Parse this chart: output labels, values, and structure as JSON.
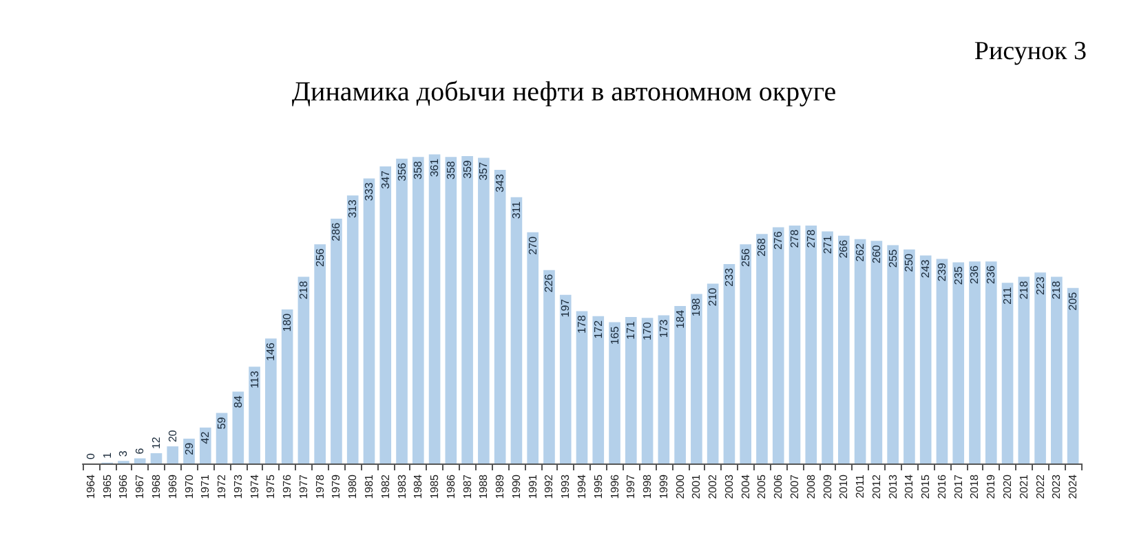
{
  "chart_data": {
    "type": "bar",
    "title": "Динамика добычи нефти в автономном округе",
    "annotations": [
      "Рисунок 3"
    ],
    "categories": [
      "1964",
      "1965",
      "1966",
      "1967",
      "1968",
      "1969",
      "1970",
      "1971",
      "1972",
      "1973",
      "1974",
      "1975",
      "1976",
      "1977",
      "1978",
      "1979",
      "1980",
      "1981",
      "1982",
      "1983",
      "1984",
      "1985",
      "1986",
      "1987",
      "1988",
      "1989",
      "1990",
      "1991",
      "1992",
      "1993",
      "1994",
      "1995",
      "1996",
      "1997",
      "1998",
      "1999",
      "2000",
      "2001",
      "2002",
      "2003",
      "2004",
      "2005",
      "2006",
      "2007",
      "2008",
      "2009",
      "2010",
      "2011",
      "2012",
      "2013",
      "2014",
      "2015",
      "2016",
      "2017",
      "2018",
      "2019",
      "2020",
      "2021",
      "2022",
      "2023",
      "2024"
    ],
    "values": [
      0,
      1,
      3,
      6,
      12,
      20,
      29,
      42,
      59,
      84,
      113,
      146,
      180,
      218,
      256,
      286,
      313,
      333,
      347,
      356,
      358,
      361,
      358,
      359,
      357,
      343,
      311,
      270,
      226,
      197,
      178,
      172,
      165,
      171,
      170,
      173,
      184,
      198,
      210,
      233,
      256,
      268,
      276,
      278,
      278,
      271,
      266,
      262,
      260,
      255,
      250,
      243,
      239,
      235,
      236,
      236,
      211,
      218,
      223,
      218,
      205
    ],
    "color": "#b4d0ea",
    "data_labels": true,
    "tick_labels": "x",
    "grid": false
  }
}
